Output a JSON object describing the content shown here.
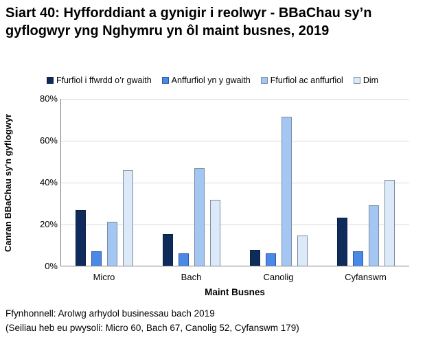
{
  "page": {
    "title": "Siart 40: Hyfforddiant a gynigir i reolwyr - BBaChau sy’n gyflogwyr yng Nghymru yn ôl maint busnes, 2019",
    "source_note": "Ffynhonnell: Arolwg arhydol businessau bach 2019",
    "base_note": "(Seiliau heb eu pwysoli: Micro 60, Bach 67, Canolig 52, Cyfanswm 179)"
  },
  "chart_data": {
    "type": "bar",
    "title": "Siart 40: Hyfforddiant a gynigir i reolwyr - BBaChau sy’n gyflogwyr yng Nghymru yn ôl maint busnes, 2019",
    "categories": [
      "Micro",
      "Bach",
      "Canolig",
      "Cyfanswm"
    ],
    "series": [
      {
        "name": "Ffurfiol i ffwrdd o’r gwaith",
        "color": "#0f2b5b",
        "border": "#0a1f44",
        "values": [
          26.5,
          15,
          7.5,
          23
        ]
      },
      {
        "name": "Anffurfiol yn y gwaith",
        "color": "#4a89e8",
        "border": "#2e5597",
        "values": [
          7,
          6,
          6,
          7
        ]
      },
      {
        "name": "Ffurfiol ac anffurfiol",
        "color": "#a3c6f2",
        "border": "#7a8aa0",
        "values": [
          21,
          46.5,
          71,
          29
        ]
      },
      {
        "name": "Dim",
        "color": "#dce9f8",
        "border": "#7a8aa0",
        "values": [
          45.5,
          31.5,
          14.5,
          41
        ]
      }
    ],
    "xlabel": "Maint Busnes",
    "ylabel": "Canran BBaChau sy'n gyflogwyr",
    "ylim": [
      0,
      80
    ],
    "yticks": [
      "0%",
      "20%",
      "40%",
      "60%",
      "80%"
    ],
    "grid": true,
    "legend_position": "top",
    "gridline_color": "#d9d9d9",
    "axis_color": "#7f7f7f"
  }
}
